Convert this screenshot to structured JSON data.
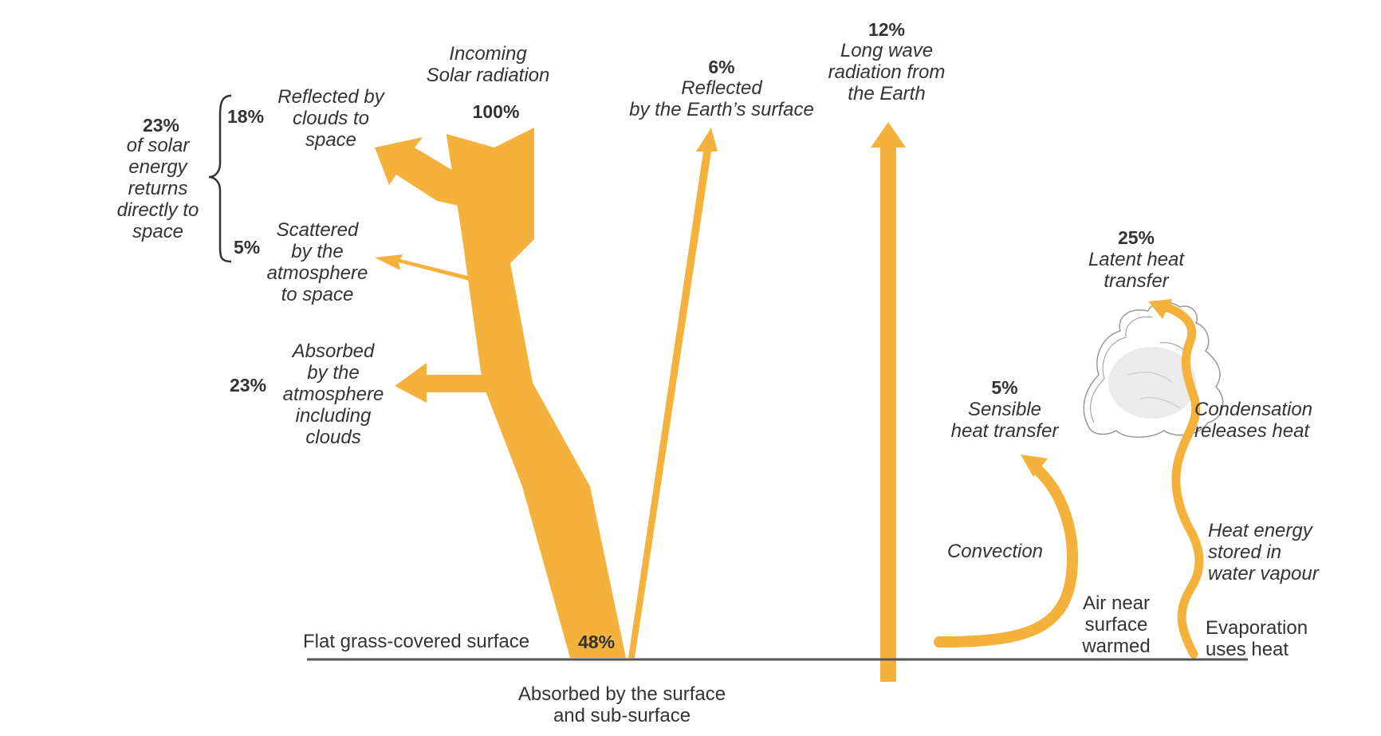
{
  "colors": {
    "arrow": "#F4B13C",
    "text": "#333333",
    "ground": "#555555",
    "cloud": "#999999"
  },
  "incoming": {
    "line1": "Incoming",
    "line2": "Solar radiation",
    "pct": "100%"
  },
  "reflected_clouds": {
    "pct": "18%",
    "line1": "Reflected by",
    "line2": "clouds to",
    "line3": "space"
  },
  "scattered": {
    "pct": "5%",
    "line1": "Scattered",
    "line2": "by the",
    "line3": "atmosphere",
    "line4": "to space"
  },
  "returns_total": {
    "pct": "23%",
    "line1": "of solar",
    "line2": "energy",
    "line3": "returns",
    "line4": "directly to",
    "line5": "space"
  },
  "absorbed_atmo": {
    "pct": "23%",
    "line1": "Absorbed",
    "line2": "by the",
    "line3": "atmosphere",
    "line4": "including",
    "line5": "clouds"
  },
  "reflected_surface": {
    "pct": "6%",
    "line1": "Reflected",
    "line2": "by the Earth’s surface"
  },
  "long_wave": {
    "pct": "12%",
    "line1": "Long wave",
    "line2": "radiation from",
    "line3": "the Earth"
  },
  "latent": {
    "pct": "25%",
    "line1": "Latent heat",
    "line2": "transfer"
  },
  "sensible": {
    "pct": "5%",
    "line1": "Sensible",
    "line2": "heat transfer"
  },
  "condensation": {
    "line1": "Condensation",
    "line2": "releases heat"
  },
  "convection": {
    "label": "Convection"
  },
  "heat_energy": {
    "line1": "Heat energy",
    "line2": "stored in",
    "line3": "water vapour"
  },
  "air_near": {
    "line1": "Air near",
    "line2": "surface",
    "line3": "warmed"
  },
  "evaporation": {
    "line1": "Evaporation",
    "line2": "uses heat"
  },
  "surface": {
    "label": "Flat grass-covered surface",
    "pct": "48%"
  },
  "absorbed_surface": {
    "line1": "Absorbed by the surface",
    "line2": "and sub-surface"
  }
}
